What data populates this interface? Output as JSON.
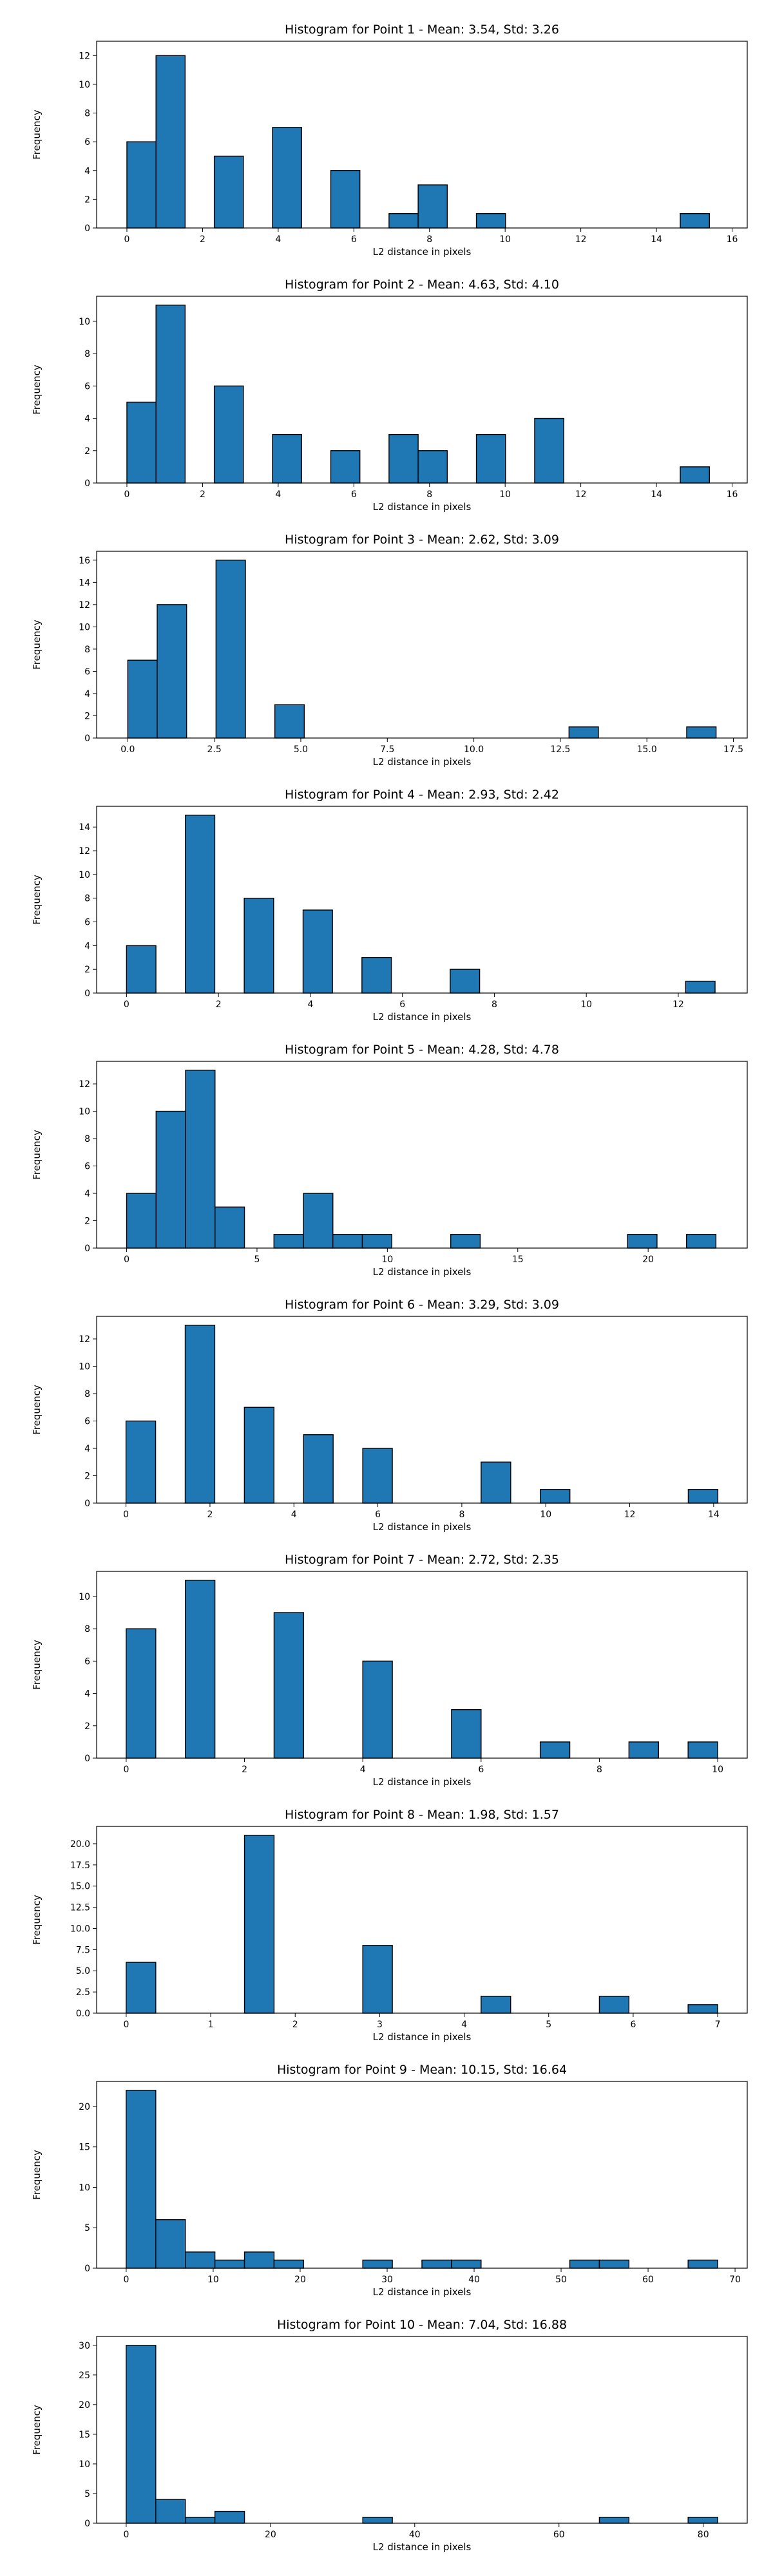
{
  "chart_data": [
    {
      "type": "bar",
      "title": "Histogram for Point 1 - Mean: 3.54, Std: 3.26",
      "xlabel": "L2 distance in pixels",
      "ylabel": "Frequency",
      "xlim": [
        -0.8,
        16.4
      ],
      "ylim": [
        0,
        13
      ],
      "xticks": [
        0,
        2,
        4,
        6,
        8,
        10,
        12,
        14,
        16
      ],
      "xtick_labels": [
        "0",
        "2",
        "4",
        "6",
        "8",
        "10",
        "12",
        "14",
        "16"
      ],
      "yticks": [
        0,
        2,
        4,
        6,
        8,
        10,
        12
      ],
      "ytick_labels": [
        "0",
        "2",
        "4",
        "6",
        "8",
        "10",
        "12"
      ],
      "bin_edges": [
        0.0,
        0.77,
        1.54,
        2.31,
        3.08,
        3.85,
        4.62,
        5.39,
        6.16,
        6.93,
        7.7,
        8.47,
        9.24,
        10.01,
        10.78,
        11.55,
        12.32,
        13.09,
        13.86,
        14.63,
        15.4
      ],
      "values": [
        6,
        12,
        0,
        5,
        0,
        7,
        0,
        4,
        0,
        1,
        3,
        0,
        1,
        0,
        0,
        0,
        0,
        0,
        0,
        1
      ],
      "color": "#1f77b4"
    },
    {
      "type": "bar",
      "title": "Histogram for Point 2 - Mean: 4.63, Std: 4.10",
      "xlabel": "L2 distance in pixels",
      "ylabel": "Frequency",
      "xlim": [
        -0.8,
        16.4
      ],
      "ylim": [
        0,
        11.55
      ],
      "xticks": [
        0,
        2,
        4,
        6,
        8,
        10,
        12,
        14,
        16
      ],
      "xtick_labels": [
        "0",
        "2",
        "4",
        "6",
        "8",
        "10",
        "12",
        "14",
        "16"
      ],
      "yticks": [
        0,
        2,
        4,
        6,
        8,
        10
      ],
      "ytick_labels": [
        "0",
        "2",
        "4",
        "6",
        "8",
        "10"
      ],
      "bin_edges": [
        0.0,
        0.77,
        1.54,
        2.31,
        3.08,
        3.85,
        4.62,
        5.39,
        6.16,
        6.93,
        7.7,
        8.47,
        9.24,
        10.01,
        10.78,
        11.55,
        12.32,
        13.09,
        13.86,
        14.63,
        15.4
      ],
      "values": [
        5,
        11,
        0,
        6,
        0,
        3,
        0,
        2,
        0,
        3,
        2,
        0,
        3,
        0,
        4,
        0,
        0,
        0,
        0,
        1
      ],
      "color": "#1f77b4"
    },
    {
      "type": "bar",
      "title": "Histogram for Point 3 - Mean: 2.62, Std: 3.09",
      "xlabel": "L2 distance in pixels",
      "ylabel": "Frequency",
      "xlim": [
        -0.9,
        17.9
      ],
      "ylim": [
        0,
        16.8
      ],
      "xticks": [
        0,
        2.5,
        5,
        7.5,
        10,
        12.5,
        15,
        17.5
      ],
      "xtick_labels": [
        "0.0",
        "2.5",
        "5.0",
        "7.5",
        "10.0",
        "12.5",
        "15.0",
        "17.5"
      ],
      "yticks": [
        0,
        2,
        4,
        6,
        8,
        10,
        12,
        14,
        16
      ],
      "ytick_labels": [
        "0",
        "2",
        "4",
        "6",
        "8",
        "10",
        "12",
        "14",
        "16"
      ],
      "bin_edges": [
        0.0,
        0.85,
        1.7,
        2.55,
        3.4,
        4.25,
        5.1,
        5.95,
        6.8,
        7.65,
        8.5,
        9.35,
        10.2,
        11.05,
        11.9,
        12.75,
        13.6,
        14.45,
        15.3,
        16.15,
        17.0
      ],
      "values": [
        7,
        12,
        0,
        16,
        0,
        3,
        0,
        0,
        0,
        0,
        0,
        0,
        0,
        0,
        0,
        1,
        0,
        0,
        0,
        1
      ],
      "color": "#1f77b4"
    },
    {
      "type": "bar",
      "title": "Histogram for Point 4 - Mean: 2.93, Std: 2.42",
      "xlabel": "L2 distance in pixels",
      "ylabel": "Frequency",
      "xlim": [
        -0.65,
        13.5
      ],
      "ylim": [
        0,
        15.75
      ],
      "xticks": [
        0,
        2,
        4,
        6,
        8,
        10,
        12
      ],
      "xtick_labels": [
        "0",
        "2",
        "4",
        "6",
        "8",
        "10",
        "12"
      ],
      "yticks": [
        0,
        2,
        4,
        6,
        8,
        10,
        12,
        14
      ],
      "ytick_labels": [
        "0",
        "2",
        "4",
        "6",
        "8",
        "10",
        "12",
        "14"
      ],
      "bin_edges": [
        0.0,
        0.64,
        1.28,
        1.92,
        2.56,
        3.2,
        3.84,
        4.48,
        5.12,
        5.76,
        6.4,
        7.04,
        7.68,
        8.32,
        8.96,
        9.6,
        10.24,
        10.88,
        11.52,
        12.16,
        12.8
      ],
      "values": [
        4,
        0,
        15,
        0,
        8,
        0,
        7,
        0,
        3,
        0,
        0,
        2,
        0,
        0,
        0,
        0,
        0,
        0,
        0,
        1
      ],
      "color": "#1f77b4"
    },
    {
      "type": "bar",
      "title": "Histogram for Point 5 - Mean: 4.28, Std: 4.78",
      "xlabel": "L2 distance in pixels",
      "ylabel": "Frequency",
      "xlim": [
        -1.15,
        23.8
      ],
      "ylim": [
        0,
        13.65
      ],
      "xticks": [
        0,
        5,
        10,
        15,
        20
      ],
      "xtick_labels": [
        "0",
        "5",
        "10",
        "15",
        "20"
      ],
      "yticks": [
        0,
        2,
        4,
        6,
        8,
        10,
        12
      ],
      "ytick_labels": [
        "0",
        "2",
        "4",
        "6",
        "8",
        "10",
        "12"
      ],
      "bin_edges": [
        0.0,
        1.13,
        2.26,
        3.39,
        4.52,
        5.65,
        6.78,
        7.91,
        9.04,
        10.17,
        11.3,
        12.43,
        13.56,
        14.69,
        15.82,
        16.95,
        18.08,
        19.21,
        20.34,
        21.47,
        22.6
      ],
      "values": [
        4,
        10,
        13,
        3,
        0,
        1,
        4,
        1,
        1,
        0,
        0,
        1,
        0,
        0,
        0,
        0,
        0,
        1,
        0,
        1
      ],
      "color": "#1f77b4"
    },
    {
      "type": "bar",
      "title": "Histogram for Point 6 - Mean: 3.29, Std: 3.09",
      "xlabel": "L2 distance in pixels",
      "ylabel": "Frequency",
      "xlim": [
        -0.7,
        14.8
      ],
      "ylim": [
        0,
        13.65
      ],
      "xticks": [
        0,
        2,
        4,
        6,
        8,
        10,
        12,
        14
      ],
      "xtick_labels": [
        "0",
        "2",
        "4",
        "6",
        "8",
        "10",
        "12",
        "14"
      ],
      "yticks": [
        0,
        2,
        4,
        6,
        8,
        10,
        12
      ],
      "ytick_labels": [
        "0",
        "2",
        "4",
        "6",
        "8",
        "10",
        "12"
      ],
      "bin_edges": [
        0.0,
        0.705,
        1.41,
        2.115,
        2.82,
        3.525,
        4.23,
        4.935,
        5.64,
        6.345,
        7.05,
        7.755,
        8.46,
        9.165,
        9.87,
        10.575,
        11.28,
        11.985,
        12.69,
        13.395,
        14.1
      ],
      "values": [
        6,
        0,
        13,
        0,
        7,
        0,
        5,
        0,
        4,
        0,
        0,
        0,
        3,
        0,
        1,
        0,
        0,
        0,
        0,
        1
      ],
      "color": "#1f77b4"
    },
    {
      "type": "bar",
      "title": "Histogram for Point 7 - Mean: 2.72, Std: 2.35",
      "xlabel": "L2 distance in pixels",
      "ylabel": "Frequency",
      "xlim": [
        -0.5,
        10.5
      ],
      "ylim": [
        0,
        11.55
      ],
      "xticks": [
        0,
        2,
        4,
        6,
        8,
        10
      ],
      "xtick_labels": [
        "0",
        "2",
        "4",
        "6",
        "8",
        "10"
      ],
      "yticks": [
        0,
        2,
        4,
        6,
        8,
        10
      ],
      "ytick_labels": [
        "0",
        "2",
        "4",
        "6",
        "8",
        "10"
      ],
      "bin_edges": [
        0.0,
        0.5,
        1.0,
        1.5,
        2.0,
        2.5,
        3.0,
        3.5,
        4.0,
        4.5,
        5.0,
        5.5,
        6.0,
        6.5,
        7.0,
        7.5,
        8.0,
        8.5,
        9.0,
        9.5,
        10.0
      ],
      "values": [
        8,
        0,
        11,
        0,
        0,
        9,
        0,
        0,
        6,
        0,
        0,
        3,
        0,
        0,
        1,
        0,
        0,
        1,
        0,
        1
      ],
      "color": "#1f77b4"
    },
    {
      "type": "bar",
      "title": "Histogram for Point 8 - Mean: 1.98, Std: 1.57",
      "xlabel": "L2 distance in pixels",
      "ylabel": "Frequency",
      "xlim": [
        -0.35,
        7.35
      ],
      "ylim": [
        0,
        22.05
      ],
      "xticks": [
        0,
        1,
        2,
        3,
        4,
        5,
        6,
        7
      ],
      "xtick_labels": [
        "0",
        "1",
        "2",
        "3",
        "4",
        "5",
        "6",
        "7"
      ],
      "yticks": [
        0,
        2.5,
        5,
        7.5,
        10,
        12.5,
        15,
        17.5,
        20
      ],
      "ytick_labels": [
        "0.0",
        "2.5",
        "5.0",
        "7.5",
        "10.0",
        "12.5",
        "15.0",
        "17.5",
        "20.0"
      ],
      "bin_edges": [
        0.0,
        0.35,
        0.7,
        1.05,
        1.4,
        1.75,
        2.1,
        2.45,
        2.8,
        3.15,
        3.5,
        3.85,
        4.2,
        4.55,
        4.9,
        5.25,
        5.6,
        5.95,
        6.3,
        6.65,
        7.0
      ],
      "values": [
        6,
        0,
        0,
        0,
        21,
        0,
        0,
        0,
        8,
        0,
        0,
        0,
        2,
        0,
        0,
        0,
        2,
        0,
        0,
        1
      ],
      "color": "#1f77b4"
    },
    {
      "type": "bar",
      "title": "Histogram for Point 9 - Mean: 10.15, Std: 16.64",
      "xlabel": "L2 distance in pixels",
      "ylabel": "Frequency",
      "xlim": [
        -3.4,
        71.4
      ],
      "ylim": [
        0,
        23.1
      ],
      "xticks": [
        0,
        10,
        20,
        30,
        40,
        50,
        60,
        70
      ],
      "xtick_labels": [
        "0",
        "10",
        "20",
        "30",
        "40",
        "50",
        "60",
        "70"
      ],
      "yticks": [
        0,
        5,
        10,
        15,
        20
      ],
      "ytick_labels": [
        "0",
        "5",
        "10",
        "15",
        "20"
      ],
      "bin_edges": [
        0.0,
        3.4,
        6.8,
        10.2,
        13.6,
        17.0,
        20.4,
        23.8,
        27.2,
        30.6,
        34.0,
        37.4,
        40.8,
        44.2,
        47.6,
        51.0,
        54.4,
        57.8,
        61.2,
        64.6,
        68.0
      ],
      "values": [
        22,
        6,
        2,
        1,
        2,
        1,
        0,
        0,
        1,
        0,
        1,
        1,
        0,
        0,
        0,
        1,
        1,
        0,
        0,
        1
      ],
      "color": "#1f77b4"
    },
    {
      "type": "bar",
      "title": "Histogram for Point 10 - Mean: 7.04, Std: 16.88",
      "xlabel": "L2 distance in pixels",
      "ylabel": "Frequency",
      "xlim": [
        -4.1,
        86.1
      ],
      "ylim": [
        0,
        31.5
      ],
      "xticks": [
        0,
        20,
        40,
        60,
        80
      ],
      "xtick_labels": [
        "0",
        "20",
        "40",
        "60",
        "80"
      ],
      "yticks": [
        0,
        5,
        10,
        15,
        20,
        25,
        30
      ],
      "ytick_labels": [
        "0",
        "5",
        "10",
        "15",
        "20",
        "25",
        "30"
      ],
      "bin_edges": [
        0.0,
        4.1,
        8.2,
        12.3,
        16.4,
        20.5,
        24.6,
        28.7,
        32.8,
        36.9,
        41.0,
        45.1,
        49.2,
        53.3,
        57.4,
        61.5,
        65.6,
        69.7,
        73.8,
        77.9,
        82.0
      ],
      "values": [
        30,
        4,
        1,
        2,
        0,
        0,
        0,
        0,
        1,
        0,
        0,
        0,
        0,
        0,
        0,
        0,
        1,
        0,
        0,
        1
      ],
      "color": "#1f77b4"
    }
  ]
}
